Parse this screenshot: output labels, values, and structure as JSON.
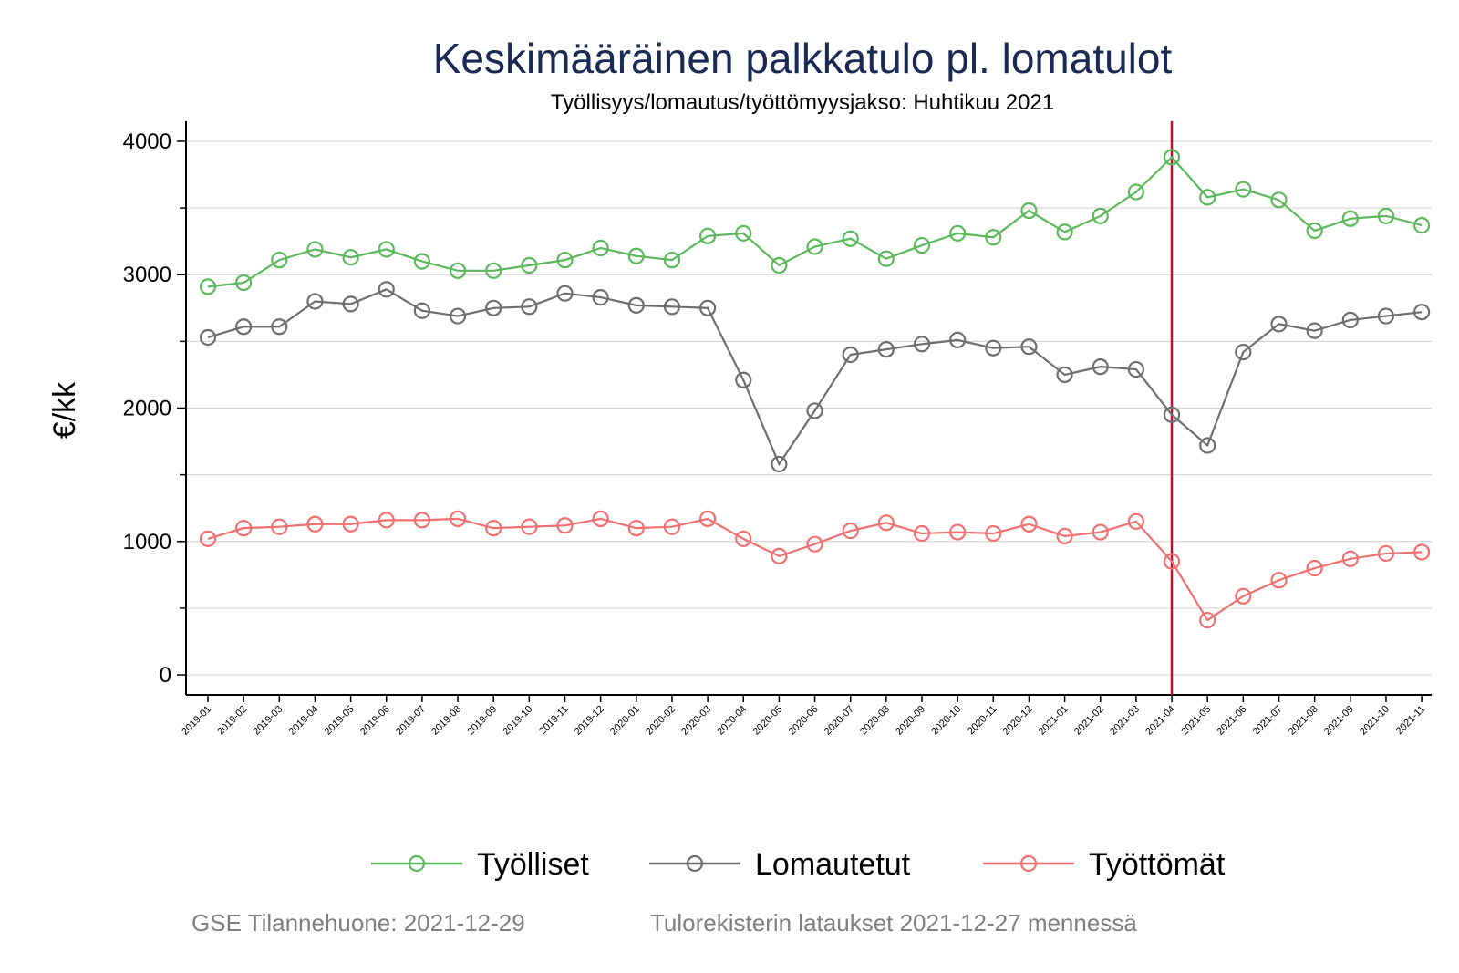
{
  "title": "Keskimääräinen palkkatulo pl. lomatulot",
  "subtitle": "Työllisyys/lomautus/työttömyysjakso: Huhtikuu 2021",
  "notes": {
    "left": "GSE Tilannehuone: 2021-12-29",
    "right": "Tulorekisterin lataukset 2021-12-27 mennessä"
  },
  "chart_data": {
    "type": "line",
    "ylabel": "€/kk",
    "xlabel": "",
    "ylim": [
      -150,
      4150
    ],
    "yticks": [
      0,
      1000,
      2000,
      3000,
      4000
    ],
    "grid": true,
    "legend_position": "bottom",
    "reference_line": {
      "x": "2021-04",
      "color": "#c0102a"
    },
    "x": [
      "2019-01",
      "2019-02",
      "2019-03",
      "2019-04",
      "2019-05",
      "2019-06",
      "2019-07",
      "2019-08",
      "2019-09",
      "2019-10",
      "2019-11",
      "2019-12",
      "2020-01",
      "2020-02",
      "2020-03",
      "2020-04",
      "2020-05",
      "2020-06",
      "2020-07",
      "2020-08",
      "2020-09",
      "2020-10",
      "2020-11",
      "2020-12",
      "2021-01",
      "2021-02",
      "2021-03",
      "2021-04",
      "2021-05",
      "2021-06",
      "2021-07",
      "2021-08",
      "2021-09",
      "2021-10",
      "2021-11"
    ],
    "series": [
      {
        "name": "Työlliset",
        "color": "#5cb85c",
        "values": [
          2910,
          2940,
          3110,
          3190,
          3130,
          3190,
          3100,
          3030,
          3030,
          3070,
          3110,
          3200,
          3140,
          3110,
          3290,
          3310,
          3070,
          3210,
          3270,
          3120,
          3220,
          3310,
          3280,
          3480,
          3320,
          3440,
          3620,
          3880,
          3580,
          3640,
          3560,
          3330,
          3420,
          3440,
          3370
        ]
      },
      {
        "name": "Lomautetut",
        "color": "#6e6e6e",
        "values": [
          2530,
          2610,
          2610,
          2800,
          2780,
          2890,
          2730,
          2690,
          2750,
          2760,
          2860,
          2830,
          2770,
          2760,
          2750,
          2210,
          1580,
          1980,
          2400,
          2440,
          2480,
          2510,
          2450,
          2460,
          2250,
          2310,
          2290,
          1950,
          1720,
          2420,
          2630,
          2580,
          2660,
          2690,
          2720
        ]
      },
      {
        "name": "Työttömät",
        "color": "#f07070",
        "values": [
          1020,
          1100,
          1110,
          1130,
          1130,
          1160,
          1160,
          1170,
          1100,
          1110,
          1120,
          1170,
          1100,
          1110,
          1170,
          1020,
          890,
          980,
          1080,
          1140,
          1060,
          1070,
          1060,
          1130,
          1040,
          1070,
          1150,
          850,
          410,
          590,
          710,
          800,
          870,
          910,
          920
        ]
      }
    ]
  }
}
